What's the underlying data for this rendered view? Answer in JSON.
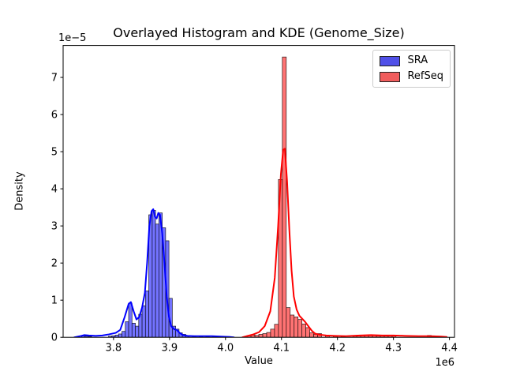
{
  "figure": {
    "background": "#ffffff"
  },
  "chart_data": {
    "type": "histogram+kde",
    "title": "Overlayed Histogram and KDE (Genome_Size)",
    "xlabel": "Value",
    "ylabel": "Density",
    "x_offset_text": "1e6",
    "y_offset_text": "1e−5",
    "x_unit_scale": 1000000,
    "y_unit_scale": 1e-05,
    "xlim": [
      3.71,
      4.409
    ],
    "ylim": [
      0,
      7.86
    ],
    "xtick_values": [
      3.8,
      3.9,
      4.0,
      4.1,
      4.2,
      4.3,
      4.4
    ],
    "xtick_labels": [
      "3.8",
      "3.9",
      "4.0",
      "4.1",
      "4.2",
      "4.3",
      "4.4"
    ],
    "ytick_values": [
      0,
      1,
      2,
      3,
      4,
      5,
      6,
      7
    ],
    "ytick_labels": [
      "0",
      "1",
      "2",
      "3",
      "4",
      "5",
      "6",
      "7"
    ],
    "grid": false,
    "legend": {
      "position": "upper right",
      "entries": [
        {
          "label": "SRA",
          "color": "#5050e8",
          "edge": "#222222"
        },
        {
          "label": "RefSeq",
          "color": "#f05c5c",
          "edge": "#222222"
        }
      ]
    },
    "series": [
      {
        "name": "SRA",
        "fill": "rgba(0,0,255,0.55)",
        "edge": "#1a1a2e",
        "line_color": "#0000ff",
        "bin_width": 0.006,
        "bars": [
          [
            3.746,
            0.04
          ],
          [
            3.752,
            0.03
          ],
          [
            3.758,
            0.02
          ],
          [
            3.794,
            0.03
          ],
          [
            3.8,
            0.04
          ],
          [
            3.806,
            0.06
          ],
          [
            3.812,
            0.09
          ],
          [
            3.818,
            0.16
          ],
          [
            3.824,
            0.42
          ],
          [
            3.83,
            0.92
          ],
          [
            3.836,
            0.38
          ],
          [
            3.842,
            0.3
          ],
          [
            3.848,
            0.62
          ],
          [
            3.854,
            0.85
          ],
          [
            3.86,
            1.25
          ],
          [
            3.866,
            3.3
          ],
          [
            3.872,
            3.42
          ],
          [
            3.878,
            3.05
          ],
          [
            3.884,
            3.35
          ],
          [
            3.89,
            2.95
          ],
          [
            3.896,
            2.6
          ],
          [
            3.902,
            1.05
          ],
          [
            3.908,
            0.3
          ],
          [
            3.914,
            0.22
          ],
          [
            3.92,
            0.12
          ],
          [
            3.926,
            0.08
          ],
          [
            3.932,
            0.05
          ],
          [
            3.944,
            0.04
          ],
          [
            3.956,
            0.03
          ],
          [
            3.968,
            0.02
          ],
          [
            3.98,
            0.02
          ],
          [
            3.992,
            0.02
          ],
          [
            4.004,
            0.02
          ]
        ],
        "kde": [
          [
            3.73,
            0.0
          ],
          [
            3.74,
            0.03
          ],
          [
            3.748,
            0.06
          ],
          [
            3.756,
            0.05
          ],
          [
            3.768,
            0.04
          ],
          [
            3.78,
            0.05
          ],
          [
            3.792,
            0.08
          ],
          [
            3.804,
            0.12
          ],
          [
            3.812,
            0.2
          ],
          [
            3.82,
            0.55
          ],
          [
            3.827,
            0.9
          ],
          [
            3.831,
            0.95
          ],
          [
            3.836,
            0.7
          ],
          [
            3.841,
            0.48
          ],
          [
            3.846,
            0.55
          ],
          [
            3.851,
            0.8
          ],
          [
            3.856,
            1.2
          ],
          [
            3.86,
            2.0
          ],
          [
            3.864,
            3.0
          ],
          [
            3.868,
            3.4
          ],
          [
            3.871,
            3.45
          ],
          [
            3.874,
            3.25
          ],
          [
            3.877,
            3.2
          ],
          [
            3.88,
            3.35
          ],
          [
            3.883,
            3.3
          ],
          [
            3.887,
            2.8
          ],
          [
            3.891,
            2.0
          ],
          [
            3.895,
            1.1
          ],
          [
            3.899,
            0.55
          ],
          [
            3.903,
            0.3
          ],
          [
            3.908,
            0.22
          ],
          [
            3.913,
            0.2
          ],
          [
            3.918,
            0.12
          ],
          [
            3.924,
            0.06
          ],
          [
            3.932,
            0.04
          ],
          [
            3.944,
            0.03
          ],
          [
            3.96,
            0.03
          ],
          [
            3.976,
            0.03
          ],
          [
            3.992,
            0.02
          ],
          [
            4.008,
            0.01
          ],
          [
            4.015,
            0.0
          ]
        ]
      },
      {
        "name": "RefSeq",
        "fill": "rgba(255,0,0,0.55)",
        "edge": "#2e1a1a",
        "line_color": "#ff0000",
        "bin_width": 0.007,
        "bars": [
          [
            4.042,
            0.05
          ],
          [
            4.049,
            0.06
          ],
          [
            4.056,
            0.05
          ],
          [
            4.063,
            0.08
          ],
          [
            4.07,
            0.1
          ],
          [
            4.077,
            0.13
          ],
          [
            4.084,
            0.22
          ],
          [
            4.091,
            0.35
          ],
          [
            4.098,
            4.25
          ],
          [
            4.105,
            7.55
          ],
          [
            4.112,
            0.8
          ],
          [
            4.119,
            0.6
          ],
          [
            4.126,
            0.55
          ],
          [
            4.133,
            0.48
          ],
          [
            4.14,
            0.36
          ],
          [
            4.147,
            0.26
          ],
          [
            4.154,
            0.12
          ],
          [
            4.161,
            0.08
          ],
          [
            4.168,
            0.1
          ],
          [
            4.182,
            0.05
          ],
          [
            4.196,
            0.04
          ],
          [
            4.21,
            0.03
          ],
          [
            4.231,
            0.05
          ],
          [
            4.238,
            0.06
          ],
          [
            4.245,
            0.05
          ],
          [
            4.252,
            0.05
          ],
          [
            4.259,
            0.05
          ],
          [
            4.266,
            0.05
          ],
          [
            4.273,
            0.04
          ],
          [
            4.28,
            0.05
          ],
          [
            4.287,
            0.04
          ],
          [
            4.294,
            0.06
          ],
          [
            4.301,
            0.04
          ],
          [
            4.364,
            0.05
          ],
          [
            4.371,
            0.04
          ],
          [
            4.378,
            0.03
          ]
        ],
        "kde": [
          [
            4.03,
            0.0
          ],
          [
            4.04,
            0.04
          ],
          [
            4.05,
            0.08
          ],
          [
            4.06,
            0.14
          ],
          [
            4.07,
            0.3
          ],
          [
            4.08,
            0.7
          ],
          [
            4.088,
            1.6
          ],
          [
            4.094,
            3.0
          ],
          [
            4.099,
            4.4
          ],
          [
            4.103,
            5.05
          ],
          [
            4.106,
            5.08
          ],
          [
            4.11,
            4.2
          ],
          [
            4.114,
            2.9
          ],
          [
            4.118,
            1.8
          ],
          [
            4.122,
            1.1
          ],
          [
            4.127,
            0.75
          ],
          [
            4.132,
            0.58
          ],
          [
            4.137,
            0.5
          ],
          [
            4.142,
            0.42
          ],
          [
            4.148,
            0.3
          ],
          [
            4.154,
            0.18
          ],
          [
            4.16,
            0.1
          ],
          [
            4.168,
            0.07
          ],
          [
            4.18,
            0.05
          ],
          [
            4.195,
            0.04
          ],
          [
            4.215,
            0.03
          ],
          [
            4.24,
            0.05
          ],
          [
            4.26,
            0.06
          ],
          [
            4.28,
            0.05
          ],
          [
            4.3,
            0.05
          ],
          [
            4.32,
            0.04
          ],
          [
            4.345,
            0.03
          ],
          [
            4.365,
            0.03
          ],
          [
            4.385,
            0.02
          ],
          [
            4.395,
            0.01
          ]
        ]
      }
    ]
  }
}
